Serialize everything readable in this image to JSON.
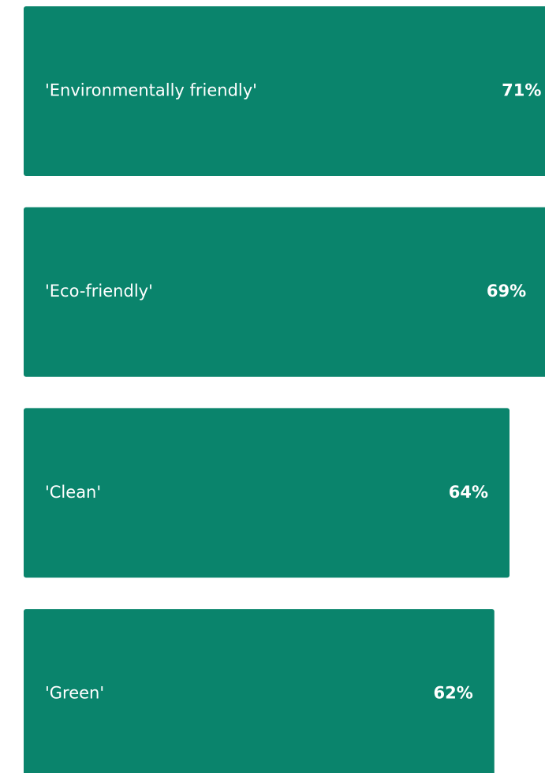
{
  "chart_data": {
    "type": "bar",
    "orientation": "horizontal",
    "categories": [
      "'Environmentally friendly'",
      "'Eco-friendly'",
      "'Clean'",
      "'Green'"
    ],
    "values": [
      71,
      69,
      64,
      62
    ],
    "value_labels": [
      "71%",
      "69%",
      "64%",
      "62%"
    ],
    "color": "#0a846c"
  }
}
